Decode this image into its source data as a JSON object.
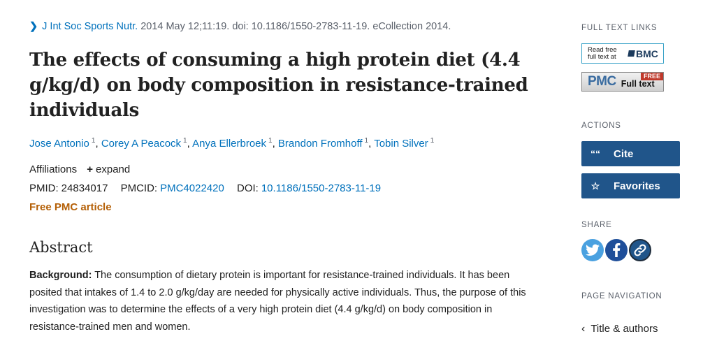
{
  "citation": {
    "journal": "J Int Soc Sports Nutr.",
    "details": "2014 May 12;11:19. doi: 10.1186/1550-2783-11-19. eCollection 2014."
  },
  "title": "The effects of consuming a high protein diet (4.4 g/kg/d) on body composition in resistance-trained individuals",
  "authors": [
    {
      "name": "Jose Antonio",
      "sup": "1"
    },
    {
      "name": "Corey A Peacock",
      "sup": "1"
    },
    {
      "name": "Anya Ellerbroek",
      "sup": "1"
    },
    {
      "name": "Brandon Fromhoff",
      "sup": "1"
    },
    {
      "name": "Tobin Silver",
      "sup": "1"
    }
  ],
  "affiliations": {
    "label": "Affiliations",
    "expand": "expand"
  },
  "ids": {
    "pmid_label": "PMID:",
    "pmid": "24834017",
    "pmcid_label": "PMCID:",
    "pmcid": "PMC4022420",
    "doi_label": "DOI:",
    "doi": "10.1186/1550-2783-11-19"
  },
  "free_pmc": "Free PMC article",
  "abstract": {
    "heading": "Abstract",
    "label": "Background:",
    "text": " The consumption of dietary protein is important for resistance-trained individuals. It has been posited that intakes of 1.4 to 2.0 g/kg/day are needed for physically active individuals. Thus, the purpose of this investigation was to determine the effects of a very high protein diet (4.4 g/kg/d) on body composition in resistance-trained men and women."
  },
  "sidebar": {
    "full_text_links": "FULL TEXT LINKS",
    "bmc_small": "Read free full text at",
    "bmc_logo": "BMC",
    "pmc_logo": "PMC",
    "pmc_fulltext": "Full text",
    "pmc_free": "FREE",
    "actions": "ACTIONS",
    "cite": "Cite",
    "favorites": "Favorites",
    "share": "SHARE",
    "page_navigation": "PAGE NAVIGATION",
    "title_authors": "Title & authors"
  },
  "colors": {
    "link": "#0071bc",
    "button": "#20558a",
    "free_pmc": "#b45f06"
  },
  "icons": [
    "chevron-right-icon",
    "plus-icon",
    "quote-icon",
    "star-icon",
    "twitter-icon",
    "facebook-icon",
    "link-icon",
    "chevron-left-icon"
  ]
}
